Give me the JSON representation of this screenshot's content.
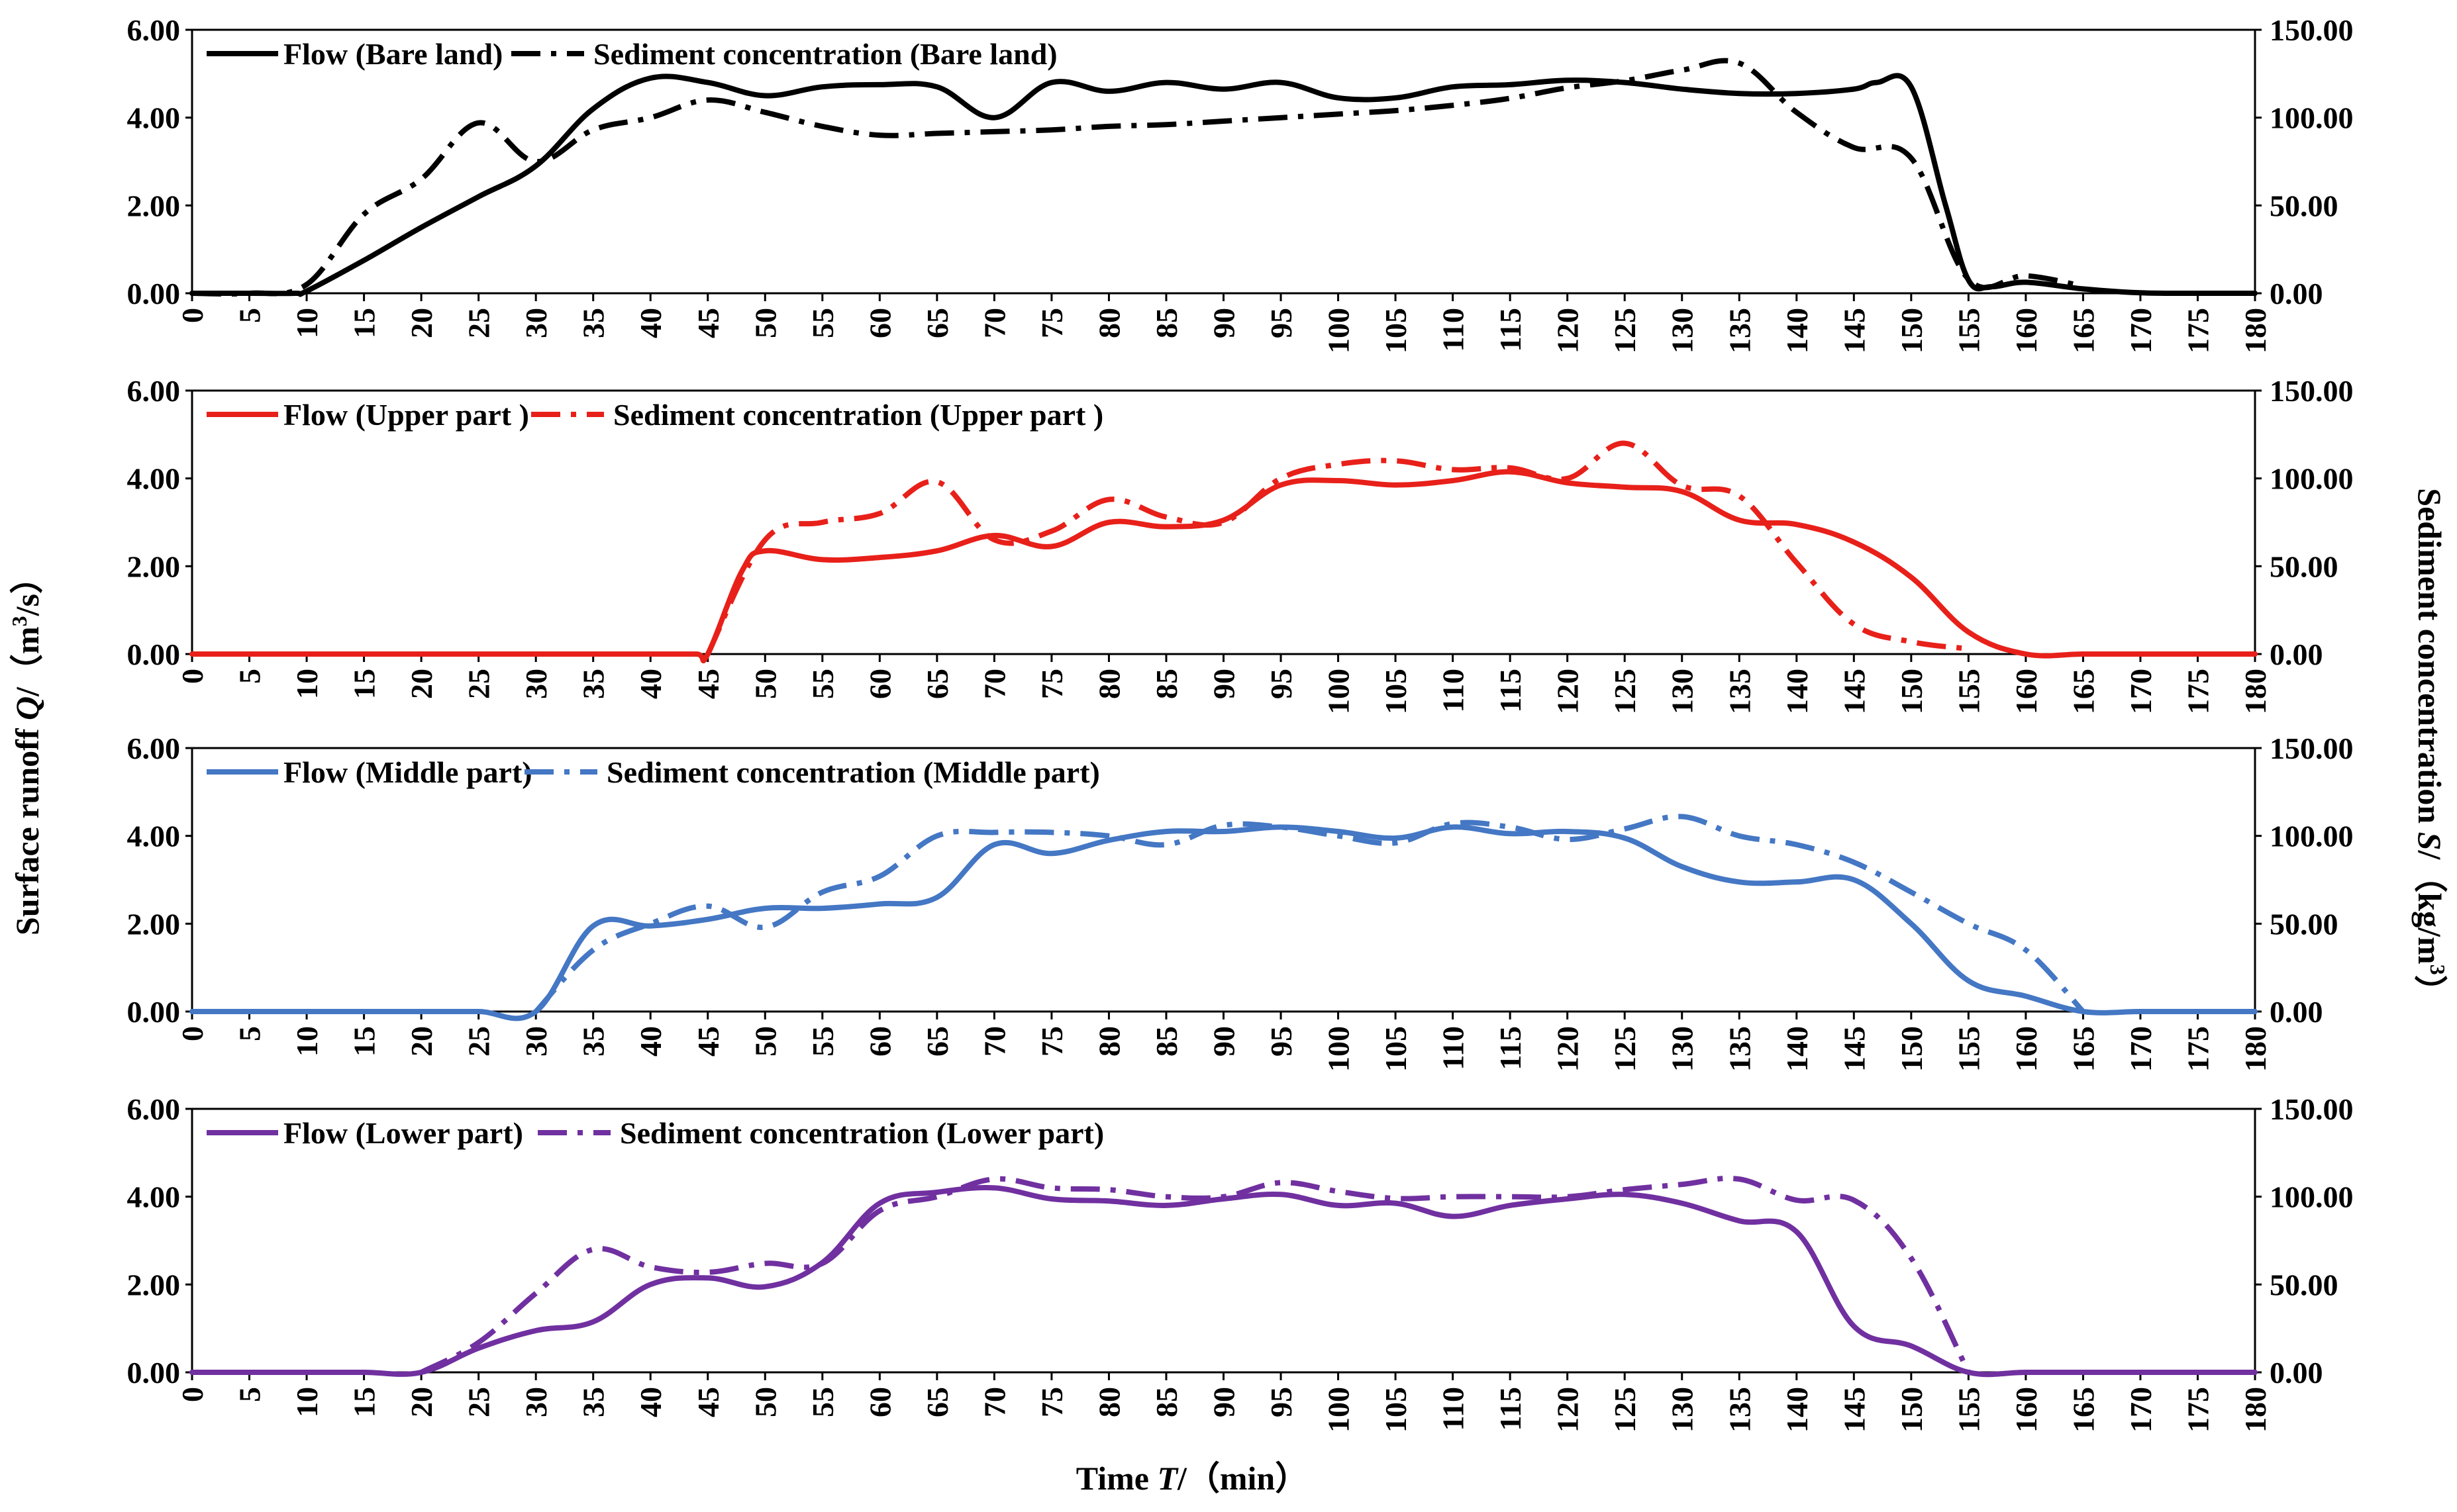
{
  "chart_data": {
    "type": "line",
    "x_axis": {
      "label": "Time T/（min）",
      "label_prefix": "Time ",
      "label_var": "T",
      "label_unit": "/（min）",
      "ticks": [
        0,
        5,
        10,
        15,
        20,
        25,
        30,
        35,
        40,
        45,
        50,
        55,
        60,
        65,
        70,
        75,
        80,
        85,
        90,
        95,
        100,
        105,
        110,
        115,
        120,
        125,
        130,
        135,
        140,
        145,
        150,
        155,
        160,
        165,
        170,
        175,
        180
      ],
      "range": [
        0,
        180
      ]
    },
    "y_left": {
      "label": "Surface runoff Q/（m³/s）",
      "label_prefix": "Surface runoff ",
      "label_var": "Q",
      "label_unit_a": "/（m",
      "label_sup": "3",
      "label_unit_b": "/s）",
      "range": [
        0,
        6
      ],
      "ticks": [
        "0.00",
        "2.00",
        "4.00",
        "6.00"
      ]
    },
    "y_right": {
      "label": "Sediment concentration S/（kg/m³）",
      "label_prefix": "Sediment concentration ",
      "label_var": "S",
      "label_unit_a": "/（kg/m",
      "label_sup": "3",
      "label_unit_b": "）",
      "range": [
        0,
        150
      ],
      "ticks": [
        "0.00",
        "50.00",
        "100.00",
        "150.00"
      ]
    },
    "panels": [
      {
        "color": "#000000",
        "series": [
          {
            "name": "Flow (Bare land)",
            "axis": "left",
            "x": [
              0,
              5,
              9,
              10,
              15,
              20,
              25,
              30,
              35,
              40,
              45,
              50,
              55,
              60,
              65,
              70,
              75,
              80,
              85,
              90,
              95,
              100,
              105,
              110,
              115,
              120,
              125,
              130,
              135,
              140,
              145,
              147,
              150,
              153,
              155,
              157,
              160,
              165,
              170,
              175,
              180
            ],
            "y": [
              0,
              0,
              0,
              0.05,
              0.75,
              1.5,
              2.2,
              2.9,
              4.2,
              4.9,
              4.8,
              4.5,
              4.7,
              4.75,
              4.7,
              4.0,
              4.8,
              4.6,
              4.8,
              4.65,
              4.8,
              4.45,
              4.45,
              4.7,
              4.75,
              4.85,
              4.8,
              4.65,
              4.55,
              4.55,
              4.65,
              4.8,
              4.7,
              2.0,
              0.3,
              0.15,
              0.25,
              0.1,
              0.01,
              0,
              0
            ]
          },
          {
            "name": "Sediment concentration (Bare land)",
            "axis": "right",
            "x": [
              0,
              5,
              10,
              15,
              20,
              25,
              30,
              35,
              40,
              45,
              50,
              55,
              60,
              65,
              70,
              75,
              80,
              85,
              90,
              95,
              100,
              105,
              110,
              115,
              120,
              125,
              130,
              135,
              140,
              145,
              150,
              155,
              160,
              165
            ],
            "y": [
              0,
              0,
              5,
              45,
              65,
              97,
              75,
              93,
              100,
              110,
              103,
              95,
              90,
              91,
              92,
              93,
              95,
              96,
              98,
              100,
              102,
              104,
              107,
              111,
              117,
              121,
              127,
              131,
              103,
              83,
              77,
              8,
              10,
              4
            ]
          }
        ]
      },
      {
        "color": "#e8201a",
        "series": [
          {
            "name": "Flow (Upper part )",
            "axis": "left",
            "x": [
              0,
              5,
              10,
              15,
              20,
              25,
              30,
              35,
              40,
              44,
              45,
              48,
              50,
              55,
              60,
              65,
              70,
              75,
              80,
              85,
              90,
              95,
              100,
              105,
              110,
              115,
              120,
              125,
              130,
              135,
              140,
              145,
              150,
              155,
              160,
              165,
              170,
              175,
              180
            ],
            "y": [
              0,
              0,
              0,
              0,
              0,
              0,
              0,
              0,
              0,
              0,
              0,
              1.9,
              2.35,
              2.15,
              2.2,
              2.35,
              2.7,
              2.45,
              3.0,
              2.9,
              3.05,
              3.85,
              3.95,
              3.85,
              3.95,
              4.15,
              3.9,
              3.8,
              3.7,
              3.05,
              2.95,
              2.55,
              1.75,
              0.5,
              0,
              0,
              0,
              0,
              0
            ]
          },
          {
            "name": "Sediment concentration (Upper part )",
            "axis": "right",
            "x": [
              45,
              50,
              55,
              60,
              65,
              70,
              75,
              80,
              85,
              90,
              95,
              100,
              105,
              110,
              115,
              120,
              125,
              130,
              135,
              140,
              145,
              150,
              155
            ],
            "y": [
              0,
              65,
              75,
              80,
              98,
              65,
              70,
              88,
              78,
              75,
              100,
              108,
              110,
              105,
              106,
              100,
              120,
              96,
              90,
              52,
              17,
              7,
              3
            ]
          }
        ]
      },
      {
        "color": "#4477c4",
        "series": [
          {
            "name": "Flow (Middle part)",
            "axis": "left",
            "x": [
              0,
              5,
              10,
              15,
              20,
              25,
              30,
              35,
              40,
              45,
              50,
              55,
              60,
              65,
              70,
              75,
              80,
              85,
              90,
              95,
              100,
              105,
              110,
              115,
              120,
              125,
              130,
              135,
              140,
              145,
              150,
              155,
              160,
              165,
              170,
              175,
              180
            ],
            "y": [
              0,
              0,
              0,
              0,
              0,
              0,
              0,
              1.95,
              1.95,
              2.1,
              2.35,
              2.35,
              2.45,
              2.6,
              3.8,
              3.6,
              3.9,
              4.1,
              4.1,
              4.2,
              4.1,
              3.95,
              4.2,
              4.05,
              4.1,
              3.95,
              3.3,
              2.95,
              2.95,
              3.0,
              2.0,
              0.7,
              0.35,
              0,
              0,
              0,
              0
            ]
          },
          {
            "name": "Sediment concentration (Middle part)",
            "axis": "right",
            "x": [
              30,
              35,
              40,
              45,
              50,
              55,
              60,
              65,
              70,
              75,
              80,
              85,
              90,
              95,
              100,
              105,
              110,
              115,
              120,
              125,
              130,
              135,
              140,
              145,
              150,
              155,
              160,
              165
            ],
            "y": [
              0,
              35,
              50,
              60,
              48,
              68,
              77,
              100,
              102,
              102,
              100,
              95,
              106,
              105,
              100,
              96,
              107,
              105,
              98,
              104,
              111,
              100,
              95,
              85,
              68,
              50,
              35,
              0
            ]
          }
        ]
      },
      {
        "color": "#7030a0",
        "series": [
          {
            "name": "Flow (Lower part)",
            "axis": "left",
            "x": [
              0,
              5,
              10,
              15,
              20,
              25,
              30,
              35,
              40,
              45,
              50,
              55,
              60,
              65,
              70,
              75,
              80,
              85,
              90,
              95,
              100,
              105,
              110,
              115,
              120,
              125,
              130,
              135,
              140,
              145,
              150,
              155,
              160,
              165,
              170,
              175,
              180
            ],
            "y": [
              0,
              0,
              0,
              0,
              0,
              0.55,
              0.95,
              1.15,
              2.0,
              2.15,
              1.95,
              2.5,
              3.85,
              4.1,
              4.2,
              3.95,
              3.9,
              3.8,
              3.95,
              4.05,
              3.8,
              3.85,
              3.55,
              3.8,
              3.95,
              4.05,
              3.85,
              3.45,
              3.2,
              1.05,
              0.6,
              0,
              0,
              0,
              0,
              0,
              0
            ]
          },
          {
            "name": "Sediment concentration (Lower part)",
            "axis": "right",
            "x": [
              20,
              25,
              30,
              35,
              40,
              45,
              50,
              55,
              60,
              65,
              70,
              75,
              80,
              85,
              90,
              95,
              100,
              105,
              110,
              115,
              120,
              125,
              130,
              135,
              140,
              145,
              150,
              155
            ],
            "y": [
              0,
              17,
              45,
              70,
              60,
              57,
              62,
              62,
              92,
              100,
              110,
              105,
              104,
              100,
              100,
              108,
              103,
              99,
              100,
              100,
              100,
              104,
              107,
              110,
              98,
              98,
              65,
              0
            ]
          }
        ]
      }
    ]
  }
}
